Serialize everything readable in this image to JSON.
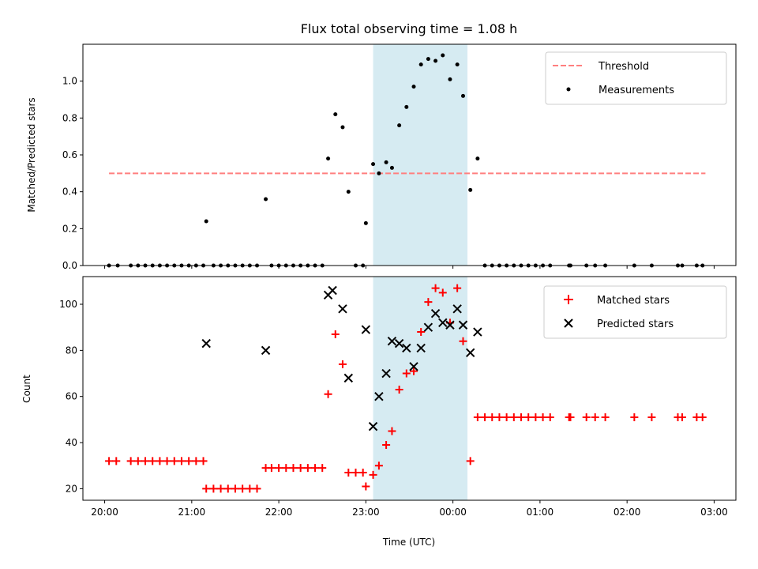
{
  "figure": {
    "title": "Flux total observing time = 1.08 h",
    "xlabel": "Time (UTC)"
  },
  "x_axis": {
    "type": "time",
    "xlim": [
      "2024-01-01T19:45",
      "2024-01-02T03:15"
    ],
    "ticks": [
      {
        "t": "2024-01-01T20:00",
        "label": "20:00"
      },
      {
        "t": "2024-01-01T21:00",
        "label": "21:00"
      },
      {
        "t": "2024-01-01T22:00",
        "label": "22:00"
      },
      {
        "t": "2024-01-01T23:00",
        "label": "23:00"
      },
      {
        "t": "2024-01-02T00:00",
        "label": "00:00"
      },
      {
        "t": "2024-01-02T01:00",
        "label": "01:00"
      },
      {
        "t": "2024-01-02T02:00",
        "label": "02:00"
      },
      {
        "t": "2024-01-02T03:00",
        "label": "03:00"
      }
    ]
  },
  "colors": {
    "threshold": "#ff7f7f",
    "measurements": "#000000",
    "matched": "#ff0000",
    "predicted": "#000000",
    "span": "#add8e6"
  },
  "chart_data": [
    {
      "type": "scatter",
      "ylabel": "Matched/Predicted stars",
      "ylim": [
        0,
        1.2
      ],
      "yticks": [
        "0.0",
        "0.2",
        "0.4",
        "0.6",
        "0.8",
        "1.0"
      ],
      "legend_position": "top-right",
      "shaded_span": [
        "2024-01-01T23:05",
        "2024-01-02T00:10"
      ],
      "threshold": {
        "name": "Threshold",
        "y": 0.5,
        "x_range": [
          "2024-01-01T20:03",
          "2024-01-02T02:54"
        ]
      },
      "series": [
        {
          "name": "Measurements",
          "x": [
            "2024-01-01T20:03",
            "2024-01-01T20:09",
            "2024-01-01T20:18",
            "2024-01-01T20:23",
            "2024-01-01T20:28",
            "2024-01-01T20:33",
            "2024-01-01T20:38",
            "2024-01-01T20:43",
            "2024-01-01T20:48",
            "2024-01-01T20:53",
            "2024-01-01T20:58",
            "2024-01-01T21:03",
            "2024-01-01T21:08",
            "2024-01-01T21:10",
            "2024-01-01T21:15",
            "2024-01-01T21:20",
            "2024-01-01T21:25",
            "2024-01-01T21:30",
            "2024-01-01T21:35",
            "2024-01-01T21:40",
            "2024-01-01T21:45",
            "2024-01-01T21:51",
            "2024-01-01T21:55",
            "2024-01-01T22:00",
            "2024-01-01T22:05",
            "2024-01-01T22:10",
            "2024-01-01T22:15",
            "2024-01-01T22:20",
            "2024-01-01T22:25",
            "2024-01-01T22:30",
            "2024-01-01T22:34",
            "2024-01-01T22:39",
            "2024-01-01T22:44",
            "2024-01-01T22:48",
            "2024-01-01T22:53",
            "2024-01-01T22:58",
            "2024-01-01T23:00",
            "2024-01-01T23:05",
            "2024-01-01T23:09",
            "2024-01-01T23:14",
            "2024-01-01T23:18",
            "2024-01-01T23:23",
            "2024-01-01T23:28",
            "2024-01-01T23:33",
            "2024-01-01T23:38",
            "2024-01-01T23:43",
            "2024-01-01T23:48",
            "2024-01-01T23:53",
            "2024-01-01T23:58",
            "2024-01-02T00:03",
            "2024-01-02T00:07",
            "2024-01-02T00:12",
            "2024-01-02T00:17",
            "2024-01-02T00:22",
            "2024-01-02T00:27",
            "2024-01-02T00:32",
            "2024-01-02T00:37",
            "2024-01-02T00:42",
            "2024-01-02T00:47",
            "2024-01-02T00:52",
            "2024-01-02T00:57",
            "2024-01-02T01:02",
            "2024-01-02T01:07",
            "2024-01-02T01:20",
            "2024-01-02T01:21",
            "2024-01-02T01:32",
            "2024-01-02T01:38",
            "2024-01-02T01:45",
            "2024-01-02T02:05",
            "2024-01-02T02:17",
            "2024-01-02T02:35",
            "2024-01-02T02:38",
            "2024-01-02T02:48",
            "2024-01-02T02:52"
          ],
          "y": [
            0,
            0,
            0,
            0,
            0,
            0,
            0,
            0,
            0,
            0,
            0,
            0,
            0,
            0.24,
            0,
            0,
            0,
            0,
            0,
            0,
            0,
            0.36,
            0,
            0,
            0,
            0,
            0,
            0,
            0,
            0,
            0.58,
            0.82,
            0.75,
            0.4,
            0,
            0,
            0.23,
            0.55,
            0.5,
            0.56,
            0.53,
            0.76,
            0.86,
            0.97,
            1.09,
            1.12,
            1.11,
            1.14,
            1.01,
            1.09,
            0.92,
            0.41,
            0.58,
            0,
            0,
            0,
            0,
            0,
            0,
            0,
            0,
            0,
            0,
            0,
            0,
            0,
            0,
            0,
            0,
            0,
            0,
            0,
            0,
            0
          ]
        }
      ]
    },
    {
      "type": "scatter",
      "ylabel": "Count",
      "ylim": [
        15,
        112
      ],
      "yticks": [
        "20",
        "40",
        "60",
        "80",
        "100"
      ],
      "legend_position": "top-right",
      "shaded_span": [
        "2024-01-01T23:05",
        "2024-01-02T00:10"
      ],
      "series": [
        {
          "name": "Matched stars",
          "marker": "plus",
          "x": [
            "2024-01-01T20:03",
            "2024-01-01T20:08",
            "2024-01-01T20:18",
            "2024-01-01T20:23",
            "2024-01-01T20:28",
            "2024-01-01T20:33",
            "2024-01-01T20:38",
            "2024-01-01T20:43",
            "2024-01-01T20:48",
            "2024-01-01T20:53",
            "2024-01-01T20:58",
            "2024-01-01T21:03",
            "2024-01-01T21:08",
            "2024-01-01T21:10",
            "2024-01-01T21:15",
            "2024-01-01T21:20",
            "2024-01-01T21:25",
            "2024-01-01T21:30",
            "2024-01-01T21:35",
            "2024-01-01T21:40",
            "2024-01-01T21:45",
            "2024-01-01T21:51",
            "2024-01-01T21:55",
            "2024-01-01T22:00",
            "2024-01-01T22:05",
            "2024-01-01T22:10",
            "2024-01-01T22:15",
            "2024-01-01T22:20",
            "2024-01-01T22:25",
            "2024-01-01T22:30",
            "2024-01-01T22:34",
            "2024-01-01T22:39",
            "2024-01-01T22:44",
            "2024-01-01T22:48",
            "2024-01-01T22:53",
            "2024-01-01T22:58",
            "2024-01-01T23:00",
            "2024-01-01T23:05",
            "2024-01-01T23:09",
            "2024-01-01T23:14",
            "2024-01-01T23:18",
            "2024-01-01T23:23",
            "2024-01-01T23:28",
            "2024-01-01T23:33",
            "2024-01-01T23:38",
            "2024-01-01T23:43",
            "2024-01-01T23:48",
            "2024-01-01T23:53",
            "2024-01-01T23:58",
            "2024-01-02T00:03",
            "2024-01-02T00:07",
            "2024-01-02T00:12",
            "2024-01-02T00:17",
            "2024-01-02T00:22",
            "2024-01-02T00:27",
            "2024-01-02T00:32",
            "2024-01-02T00:37",
            "2024-01-02T00:42",
            "2024-01-02T00:47",
            "2024-01-02T00:52",
            "2024-01-02T00:57",
            "2024-01-02T01:02",
            "2024-01-02T01:07",
            "2024-01-02T01:20",
            "2024-01-02T01:21",
            "2024-01-02T01:32",
            "2024-01-02T01:38",
            "2024-01-02T01:45",
            "2024-01-02T02:05",
            "2024-01-02T02:17",
            "2024-01-02T02:35",
            "2024-01-02T02:38",
            "2024-01-02T02:48",
            "2024-01-02T02:52"
          ],
          "y": [
            32,
            32,
            32,
            32,
            32,
            32,
            32,
            32,
            32,
            32,
            32,
            32,
            32,
            20,
            20,
            20,
            20,
            20,
            20,
            20,
            20,
            29,
            29,
            29,
            29,
            29,
            29,
            29,
            29,
            29,
            61,
            87,
            74,
            27,
            27,
            27,
            21,
            26,
            30,
            39,
            45,
            63,
            70,
            71,
            88,
            101,
            107,
            105,
            92,
            107,
            84,
            32,
            51,
            51,
            51,
            51,
            51,
            51,
            51,
            51,
            51,
            51,
            51,
            51,
            51,
            51,
            51,
            51,
            51,
            51,
            51,
            51,
            51,
            51
          ]
        },
        {
          "name": "Predicted stars",
          "marker": "x",
          "x": [
            "2024-01-01T21:10",
            "2024-01-01T21:51",
            "2024-01-01T22:34",
            "2024-01-01T22:37",
            "2024-01-01T22:44",
            "2024-01-01T22:48",
            "2024-01-01T23:00",
            "2024-01-01T23:05",
            "2024-01-01T23:09",
            "2024-01-01T23:14",
            "2024-01-01T23:18",
            "2024-01-01T23:23",
            "2024-01-01T23:28",
            "2024-01-01T23:33",
            "2024-01-01T23:38",
            "2024-01-01T23:43",
            "2024-01-01T23:48",
            "2024-01-01T23:53",
            "2024-01-01T23:58",
            "2024-01-02T00:03",
            "2024-01-02T00:07",
            "2024-01-02T00:12",
            "2024-01-02T00:17"
          ],
          "y": [
            83,
            80,
            104,
            106,
            98,
            68,
            89,
            47,
            60,
            70,
            84,
            83,
            81,
            73,
            81,
            90,
            96,
            92,
            91,
            98,
            91,
            79,
            88
          ]
        }
      ]
    }
  ]
}
